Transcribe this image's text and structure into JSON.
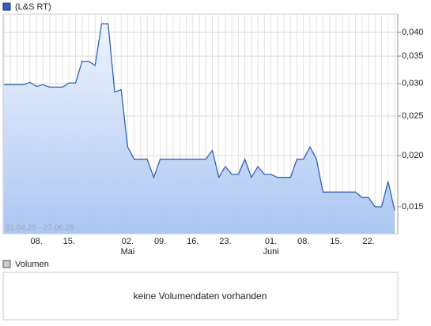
{
  "chart_data": {
    "type": "area",
    "date_range": "01.04.25 - 27.06.25",
    "categories": [
      null,
      null,
      null,
      null,
      null,
      "08.",
      null,
      null,
      null,
      null,
      "15.",
      null,
      null,
      null,
      null,
      null,
      null,
      null,
      null,
      "02.",
      null,
      null,
      null,
      null,
      "09.",
      null,
      null,
      null,
      null,
      "16.",
      null,
      null,
      null,
      null,
      "23.",
      null,
      null,
      null,
      null,
      null,
      null,
      "01.",
      null,
      null,
      null,
      null,
      "08.",
      null,
      null,
      null,
      null,
      "15.",
      null,
      null,
      null,
      null,
      "22.",
      null,
      null,
      null,
      null
    ],
    "months": [
      null,
      null,
      null,
      null,
      null,
      null,
      null,
      null,
      null,
      null,
      null,
      null,
      null,
      null,
      null,
      null,
      null,
      null,
      null,
      "Mai",
      null,
      null,
      null,
      null,
      null,
      null,
      null,
      null,
      null,
      null,
      null,
      null,
      null,
      null,
      null,
      null,
      null,
      null,
      null,
      null,
      null,
      "Juni",
      null,
      null,
      null,
      null,
      null,
      null,
      null,
      null,
      null,
      null,
      null,
      null,
      null,
      null,
      null,
      null,
      null,
      null,
      null
    ],
    "series": [
      {
        "name": "(L&S RT)",
        "color": "#2f62c2",
        "values": [
          0.0298,
          0.0298,
          0.0298,
          0.0298,
          0.0302,
          0.0295,
          0.0298,
          0.0294,
          0.0294,
          0.0294,
          0.0301,
          0.0301,
          0.034,
          0.034,
          0.0332,
          0.042,
          0.042,
          0.0286,
          0.029,
          0.021,
          0.0196,
          0.0196,
          0.0196,
          0.0177,
          0.0196,
          0.0196,
          0.0196,
          0.0196,
          0.0196,
          0.0196,
          0.0196,
          0.0196,
          0.0206,
          0.0177,
          0.0188,
          0.018,
          0.018,
          0.0196,
          0.0177,
          0.0188,
          0.018,
          0.018,
          0.0177,
          0.0177,
          0.0177,
          0.0196,
          0.0196,
          0.021,
          0.0196,
          0.0163,
          0.0163,
          0.0163,
          0.0163,
          0.0163,
          0.0163,
          0.0158,
          0.0158,
          0.015,
          0.015,
          0.0173,
          0.0147
        ]
      }
    ],
    "ylim": [
      0.0129,
      0.0443
    ],
    "yscale": "log",
    "yticks": [
      {
        "value": 0.015,
        "label": "0,015"
      },
      {
        "value": 0.02,
        "label": "0,020"
      },
      {
        "value": 0.025,
        "label": "0,025"
      },
      {
        "value": 0.03,
        "label": "0,030"
      },
      {
        "value": 0.035,
        "label": "0,035"
      },
      {
        "value": 0.04,
        "label": "0,040"
      }
    ],
    "grid": true
  },
  "volume_panel": {
    "legend": "Volumen",
    "message": "keine Volumendaten vorhanden"
  }
}
